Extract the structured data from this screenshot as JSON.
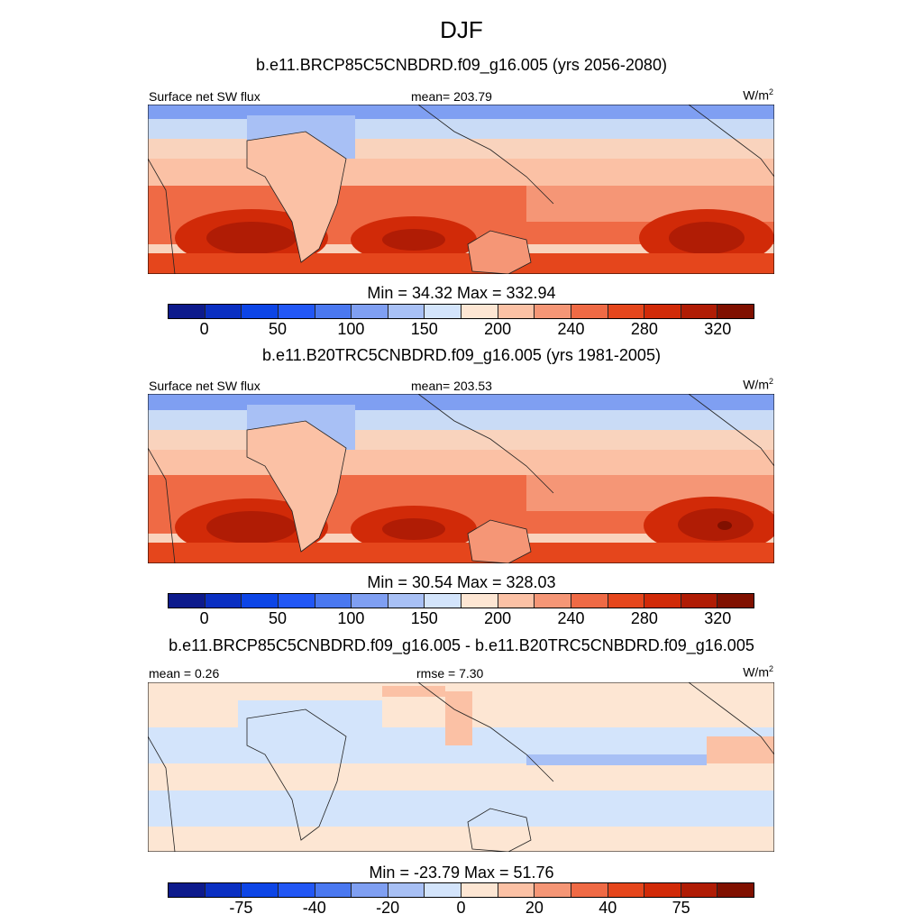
{
  "chart_data": {
    "type": "heatmap",
    "title": "DJF",
    "panels": [
      {
        "title": "b.e11.BRCP85C5CNBDRD.f09_g16.005 (yrs 2056-2080)",
        "left_label": "Surface net SW flux",
        "center_label": "mean= 203.79",
        "units_base": "W/m",
        "units_sup": "2",
        "min_max": "Min =  34.32 Max = 332.94",
        "colorbar_ticks": [
          "0",
          "50",
          "100",
          "150",
          "200",
          "240",
          "280",
          "320"
        ],
        "colorbar_colors": [
          "#0d1a8c",
          "#0a2fc2",
          "#0d45e6",
          "#2257f5",
          "#4a78f0",
          "#7f9ff2",
          "#a8c0f5",
          "#d3e4fb",
          "#fde6d3",
          "#fbc1a5",
          "#f59676",
          "#ef6a45",
          "#e5461c",
          "#d12a08",
          "#b01c05",
          "#801000"
        ]
      },
      {
        "title": "b.e11.B20TRC5CNBDRD.f09_g16.005 (yrs 1981-2005)",
        "left_label": "Surface net SW flux",
        "center_label": "mean= 203.53",
        "units_base": "W/m",
        "units_sup": "2",
        "min_max": "Min =  30.54 Max = 328.03",
        "colorbar_ticks": [
          "0",
          "50",
          "100",
          "150",
          "200",
          "240",
          "280",
          "320"
        ],
        "colorbar_colors": [
          "#0d1a8c",
          "#0a2fc2",
          "#0d45e6",
          "#2257f5",
          "#4a78f0",
          "#7f9ff2",
          "#a8c0f5",
          "#d3e4fb",
          "#fde6d3",
          "#fbc1a5",
          "#f59676",
          "#ef6a45",
          "#e5461c",
          "#d12a08",
          "#b01c05",
          "#801000"
        ]
      },
      {
        "title": "b.e11.BRCP85C5CNBDRD.f09_g16.005 - b.e11.B20TRC5CNBDRD.f09_g16.005",
        "left_label": "mean =   0.26",
        "center_label": "rmse =   7.30",
        "units_base": "W/m",
        "units_sup": "2",
        "min_max": "Min = -23.79 Max =  51.76",
        "colorbar_ticks": [
          "-75",
          "-40",
          "-20",
          "0",
          "20",
          "40",
          "75"
        ],
        "colorbar_colors": [
          "#0d1a8c",
          "#0a2fc2",
          "#0d45e6",
          "#2257f5",
          "#4a78f0",
          "#7f9ff2",
          "#a8c0f5",
          "#d3e4fb",
          "#fde6d3",
          "#fbc1a5",
          "#f59676",
          "#ef6a45",
          "#e5461c",
          "#d12a08",
          "#b01c05",
          "#801000"
        ]
      }
    ]
  }
}
